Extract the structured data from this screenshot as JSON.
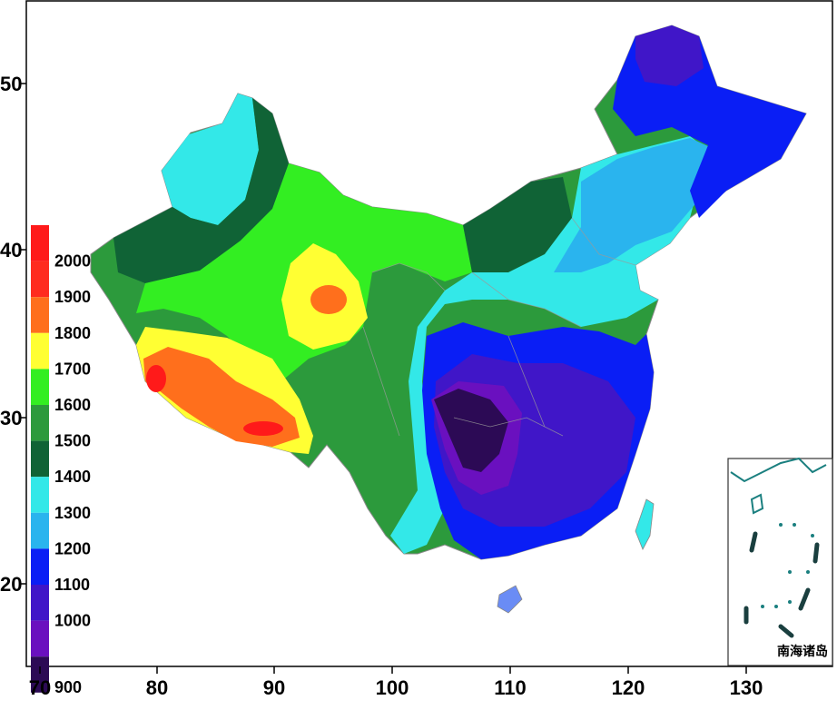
{
  "map": {
    "x_ticks": [
      "70",
      "80",
      "90",
      "100",
      "110",
      "120",
      "130"
    ],
    "y_ticks": [
      "50",
      "40",
      "30",
      "20"
    ],
    "inset_label": "南海诸岛"
  },
  "legend": {
    "levels": [
      {
        "label": "2000",
        "color": "#ff2b1f"
      },
      {
        "label": "1900",
        "color": "#ff6f1c"
      },
      {
        "label": "1800",
        "color": "#ffff33"
      },
      {
        "label": "1700",
        "color": "#33ee22"
      },
      {
        "label": "1600",
        "color": "#2c9a3c"
      },
      {
        "label": "1500",
        "color": "#106336"
      },
      {
        "label": "1400",
        "color": "#33e8e8"
      },
      {
        "label": "1300",
        "color": "#2ab4ee"
      },
      {
        "label": "1200",
        "color": "#0a1ef5"
      },
      {
        "label": "1100",
        "color": "#4016c8"
      },
      {
        "label": "1000",
        "color": "#6a10bf"
      },
      {
        "label": "900",
        "color": "#2c0a55"
      }
    ],
    "top_color": "#ff1a1a"
  }
}
